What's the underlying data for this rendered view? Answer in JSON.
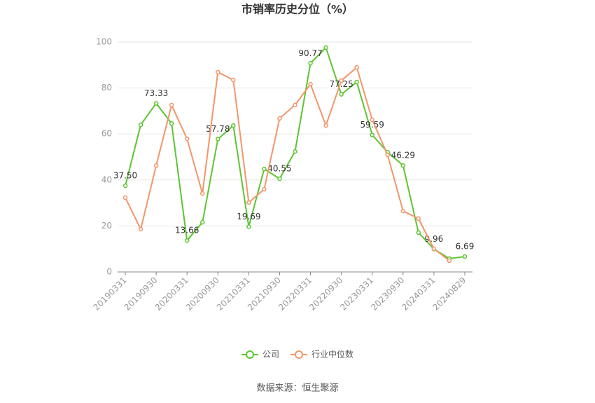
{
  "chart_data": {
    "type": "line",
    "title": "市销率历史分位（%）",
    "source": "数据来源：恒生聚源",
    "categories": [
      "20190331",
      null,
      "20190930",
      null,
      "20200331",
      null,
      "20200930",
      null,
      "20210331",
      null,
      "20210930",
      null,
      "20220331",
      null,
      "20220930",
      null,
      "20230331",
      null,
      "20230930",
      null,
      "20240331",
      null,
      "20240829"
    ],
    "series": [
      {
        "name": "公司",
        "color": "#5cc531",
        "values": [
          37.5,
          64.0,
          73.33,
          64.6,
          13.66,
          21.6,
          57.78,
          63.7,
          19.69,
          44.8,
          40.55,
          52.4,
          90.77,
          97.6,
          77.25,
          82.6,
          59.59,
          52.1,
          46.29,
          17.1,
          9.96,
          5.8,
          6.69
        ],
        "value_labels": [
          "37.50",
          null,
          "73.33",
          null,
          "13.66",
          null,
          "57.78",
          null,
          "19.69",
          null,
          "40.55",
          null,
          "90.77",
          null,
          "77.25",
          null,
          "59.59",
          null,
          "46.29",
          null,
          "9.96",
          null,
          "6.69"
        ]
      },
      {
        "name": "行业中位数",
        "color": "#f4956a",
        "values": [
          32.3,
          18.6,
          46.3,
          72.6,
          57.9,
          34.1,
          86.9,
          83.5,
          30.2,
          36.0,
          66.8,
          72.6,
          81.7,
          63.7,
          83.2,
          89.0,
          66.2,
          50.9,
          26.5,
          23.2,
          10.1,
          4.9,
          null
        ]
      }
    ],
    "ylim": [
      0,
      100
    ],
    "yticks": [
      0,
      20,
      40,
      60,
      80,
      100
    ],
    "grid": true,
    "legend": "bottom"
  }
}
